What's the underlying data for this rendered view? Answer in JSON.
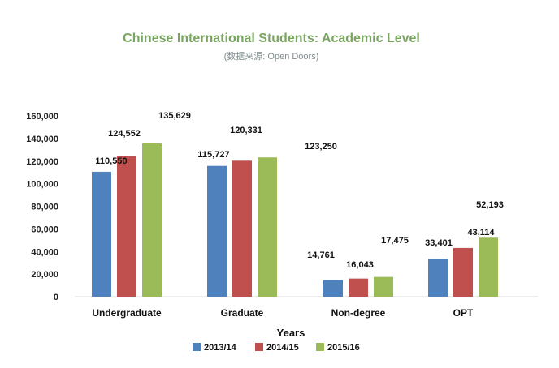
{
  "chart_data": {
    "type": "bar",
    "title": "Chinese International Students: Academic Level",
    "subtitle": "(数据来源: Open Doors)",
    "xlabel": "Years",
    "ylabel": "",
    "ylim": [
      0,
      160000
    ],
    "yticks": [
      0,
      20000,
      40000,
      60000,
      80000,
      100000,
      120000,
      140000,
      160000
    ],
    "ytick_labels": [
      "0",
      "20,000",
      "40,000",
      "60,000",
      "80,000",
      "100,000",
      "120,000",
      "140,000",
      "160,000"
    ],
    "categories": [
      "Undergraduate",
      "Graduate",
      "Non-degree",
      "OPT"
    ],
    "series": [
      {
        "name": "2013/14",
        "color": "#4f81bd",
        "values": [
          110550,
          115727,
          14761,
          33401
        ],
        "labels": [
          "110,550",
          "115,727",
          "14,761",
          "33,401"
        ]
      },
      {
        "name": "2014/15",
        "color": "#c0504d",
        "values": [
          124552,
          120331,
          16043,
          43114
        ],
        "labels": [
          "124,552",
          "120,331",
          "16,043",
          "43,114"
        ]
      },
      {
        "name": "2015/16",
        "color": "#9bbb59",
        "values": [
          135629,
          123250,
          17475,
          52193
        ],
        "labels": [
          "135,629",
          "123,250",
          "17,475",
          "52,193"
        ]
      }
    ],
    "grid": false,
    "legend_position": "bottom",
    "title_color": "#7aa561",
    "subtitle_color": "#7f8c8d"
  }
}
